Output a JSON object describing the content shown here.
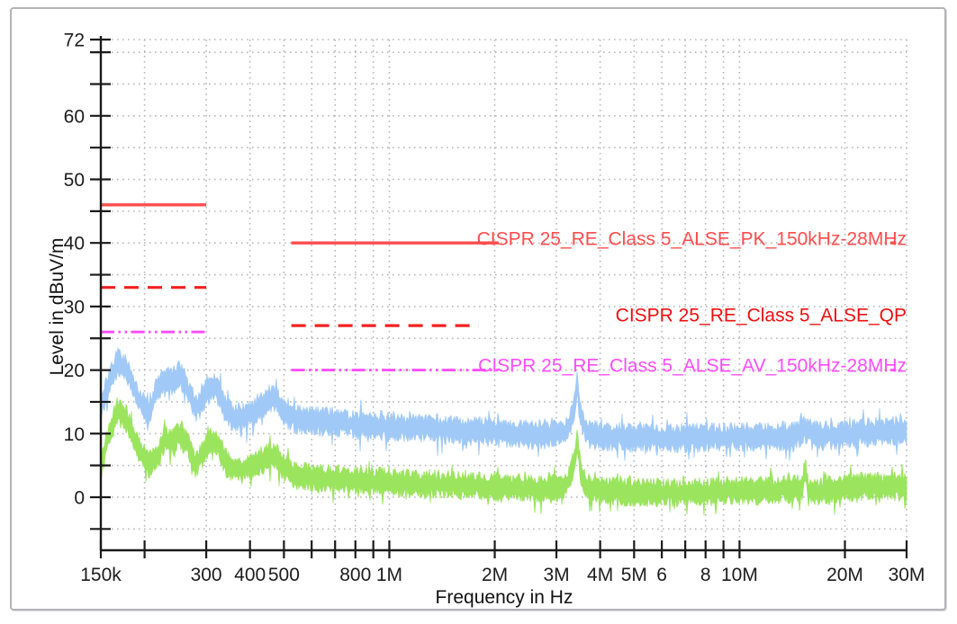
{
  "window": {
    "background": "#ffffff",
    "frame_border_color": "#b4b4b8"
  },
  "chart_data": {
    "type": "line",
    "title": "",
    "xlabel": "Frequency in Hz",
    "ylabel": "Level in dBuV/m",
    "x_scale": "log",
    "x_min_hz": 150000,
    "x_max_hz": 30000000,
    "y_min_db": -8.35,
    "y_max_db": 72,
    "grid_color": "#b8b8b8",
    "axis_color": "#1a1a1a",
    "tick_label_color": "#1c1c1c",
    "y_ticks": [
      {
        "db": 72,
        "label": "72"
      },
      {
        "db": 70,
        "label": ""
      },
      {
        "db": 65,
        "label": ""
      },
      {
        "db": 60,
        "label": "60"
      },
      {
        "db": 55,
        "label": ""
      },
      {
        "db": 50,
        "label": "50"
      },
      {
        "db": 45,
        "label": ""
      },
      {
        "db": 40,
        "label": "40"
      },
      {
        "db": 35,
        "label": ""
      },
      {
        "db": 30,
        "label": "30"
      },
      {
        "db": 25,
        "label": ""
      },
      {
        "db": 20,
        "label": "20"
      },
      {
        "db": 15,
        "label": ""
      },
      {
        "db": 10,
        "label": "10"
      },
      {
        "db": 5,
        "label": ""
      },
      {
        "db": 0,
        "label": "0"
      },
      {
        "db": -5,
        "label": ""
      }
    ],
    "x_ticks": [
      {
        "hz": 150000,
        "label": "150k"
      },
      {
        "hz": 200000,
        "label": ""
      },
      {
        "hz": 300000,
        "label": "300"
      },
      {
        "hz": 400000,
        "label": "400"
      },
      {
        "hz": 500000,
        "label": "500"
      },
      {
        "hz": 600000,
        "label": ""
      },
      {
        "hz": 700000,
        "label": ""
      },
      {
        "hz": 800000,
        "label": "800"
      },
      {
        "hz": 900000,
        "label": ""
      },
      {
        "hz": 1000000,
        "label": "1M"
      },
      {
        "hz": 2000000,
        "label": "2M"
      },
      {
        "hz": 3000000,
        "label": "3M"
      },
      {
        "hz": 4000000,
        "label": "4M"
      },
      {
        "hz": 5000000,
        "label": "5M"
      },
      {
        "hz": 6000000,
        "label": "6"
      },
      {
        "hz": 7000000,
        "label": ""
      },
      {
        "hz": 8000000,
        "label": "8"
      },
      {
        "hz": 9000000,
        "label": ""
      },
      {
        "hz": 10000000,
        "label": "10M"
      },
      {
        "hz": 20000000,
        "label": "20M"
      },
      {
        "hz": 30000000,
        "label": "30M"
      }
    ],
    "series": [
      {
        "name": "PK_measurement_trace",
        "color": "#a0c9f7",
        "seed": 20231,
        "noise_base_db": 0.7,
        "noise_rand_db": 1.7,
        "points": [
          [
            150000,
            14
          ],
          [
            160000,
            19
          ],
          [
            168000,
            21.3
          ],
          [
            178000,
            20
          ],
          [
            190000,
            16
          ],
          [
            205000,
            13.3
          ],
          [
            218000,
            17
          ],
          [
            228000,
            18.7
          ],
          [
            240000,
            18
          ],
          [
            252000,
            19.6
          ],
          [
            265000,
            17
          ],
          [
            280000,
            13.8
          ],
          [
            295000,
            15.5
          ],
          [
            312000,
            17.6
          ],
          [
            325000,
            16.5
          ],
          [
            345000,
            13.2
          ],
          [
            365000,
            12.3
          ],
          [
            400000,
            12.8
          ],
          [
            440000,
            15
          ],
          [
            470000,
            15.8
          ],
          [
            500000,
            13.5
          ],
          [
            540000,
            12.2
          ],
          [
            600000,
            12
          ],
          [
            700000,
            11.8
          ],
          [
            800000,
            11.5
          ],
          [
            1000000,
            11.2
          ],
          [
            1300000,
            10.8
          ],
          [
            1700000,
            10.4
          ],
          [
            2200000,
            10
          ],
          [
            2800000,
            9.8
          ],
          [
            3200000,
            10.4
          ],
          [
            3350000,
            13
          ],
          [
            3440000,
            17.8
          ],
          [
            3520000,
            13
          ],
          [
            3650000,
            10
          ],
          [
            4000000,
            9.6
          ],
          [
            5000000,
            9.4
          ],
          [
            6500000,
            9.3
          ],
          [
            8000000,
            9.4
          ],
          [
            10000000,
            9.5
          ],
          [
            12000000,
            9.4
          ],
          [
            14000000,
            9.6
          ],
          [
            15400000,
            10.6
          ],
          [
            16500000,
            9.6
          ],
          [
            18000000,
            9.7
          ],
          [
            20000000,
            9.9
          ],
          [
            23000000,
            10.2
          ],
          [
            26000000,
            10.4
          ],
          [
            30000000,
            10.4
          ]
        ]
      },
      {
        "name": "AV_measurement_trace",
        "color": "#9be45e",
        "seed": 77003,
        "noise_base_db": 0.7,
        "noise_rand_db": 1.6,
        "points": [
          [
            150000,
            5
          ],
          [
            160000,
            11
          ],
          [
            168000,
            13.4
          ],
          [
            178000,
            12.2
          ],
          [
            190000,
            8
          ],
          [
            205000,
            5
          ],
          [
            218000,
            6.5
          ],
          [
            228000,
            9.2
          ],
          [
            240000,
            8.6
          ],
          [
            252000,
            9.8
          ],
          [
            265000,
            8.2
          ],
          [
            280000,
            5.2
          ],
          [
            295000,
            7
          ],
          [
            312000,
            9
          ],
          [
            325000,
            8
          ],
          [
            345000,
            5
          ],
          [
            365000,
            4.4
          ],
          [
            400000,
            4.6
          ],
          [
            440000,
            6
          ],
          [
            470000,
            6.8
          ],
          [
            500000,
            4.6
          ],
          [
            540000,
            3.4
          ],
          [
            600000,
            3.1
          ],
          [
            700000,
            2.9
          ],
          [
            800000,
            2.7
          ],
          [
            1000000,
            2.4
          ],
          [
            1300000,
            2.1
          ],
          [
            1700000,
            1.8
          ],
          [
            2200000,
            1.5
          ],
          [
            2800000,
            1.2
          ],
          [
            3200000,
            1.8
          ],
          [
            3350000,
            4.5
          ],
          [
            3440000,
            9
          ],
          [
            3520000,
            4
          ],
          [
            3650000,
            1.5
          ],
          [
            4000000,
            1
          ],
          [
            5000000,
            0.8
          ],
          [
            6500000,
            0.7
          ],
          [
            8000000,
            0.8
          ],
          [
            10000000,
            1.1
          ],
          [
            12000000,
            1
          ],
          [
            14000000,
            1.2
          ],
          [
            15100000,
            1.4
          ],
          [
            15400000,
            4.3
          ],
          [
            15700000,
            1.2
          ],
          [
            16500000,
            1
          ],
          [
            18000000,
            1.2
          ],
          [
            20000000,
            1.5
          ],
          [
            23000000,
            1.7
          ],
          [
            26000000,
            1.8
          ],
          [
            30000000,
            1.5
          ]
        ]
      }
    ],
    "limit_lines": [
      {
        "name": "PK_limit",
        "color": "#ff4d4d",
        "stroke_width": 3.4,
        "dash": "",
        "segments": [
          [
            150000,
            46,
            300000,
            46
          ],
          [
            525000,
            40,
            2050000,
            40
          ],
          [
            27000000,
            40,
            28000000,
            40
          ]
        ],
        "label": {
          "text": "CISPR 25_RE_Class 5_ALSE_PK_150kHz-28MHz",
          "color": "#ff4d4d",
          "at_db": 39.6
        }
      },
      {
        "name": "QP_limit",
        "color": "#f52020",
        "stroke_width": 3.2,
        "dash": "16 10",
        "segments": [
          [
            150000,
            33,
            300000,
            33
          ],
          [
            525000,
            27,
            1800000,
            27
          ]
        ],
        "label": {
          "text": "CISPR 25_RE_Class 5_ALSE_QP",
          "color": "#ee1010",
          "at_db": 27.6
        }
      },
      {
        "name": "AV_limit",
        "color": "#ff4cff",
        "stroke_width": 2.9,
        "dash": "15 4.5 2.5 4.5 2.5 4.5",
        "segments": [
          [
            150000,
            26,
            300000,
            26
          ],
          [
            525000,
            20,
            2050000,
            20
          ],
          [
            27000000,
            20,
            28000000,
            20
          ]
        ],
        "label": {
          "text": "CISPR 25_RE_Class 5_ALSE_AV_150kHz-28MHz",
          "color": "#ff4cff",
          "at_db": 19.7
        }
      }
    ]
  }
}
